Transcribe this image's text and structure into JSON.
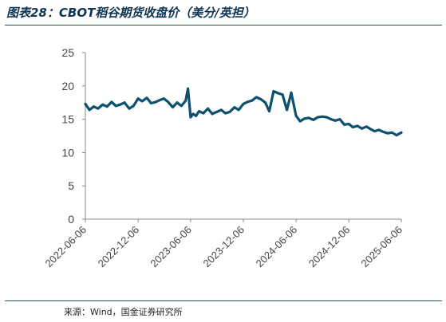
{
  "figure": {
    "title": "图表28：CBOT稻谷期货收盘价（美分/英担）",
    "source": "来源：Wind，国金证券研究所"
  },
  "colors": {
    "series": "#0d5070",
    "axis": "#888888",
    "text": "#444444",
    "rule": "#1f4e79"
  },
  "chart_data": {
    "type": "line",
    "title": "",
    "xlabel": "",
    "ylabel": "",
    "ylim": [
      0,
      25
    ],
    "yticks": [
      "0",
      "5",
      "10",
      "15",
      "20",
      "25"
    ],
    "xticks": [
      "2022-06-06",
      "2022-12-06",
      "2023-06-06",
      "2023-12-06",
      "2024-06-06",
      "2024-12-06",
      "2025-06-06"
    ],
    "grid": false,
    "legend": "none",
    "series": [
      {
        "name": "",
        "x": [
          "2022-06-06",
          "2022-06-20",
          "2022-07-05",
          "2022-07-20",
          "2022-08-05",
          "2022-08-20",
          "2022-09-05",
          "2022-09-20",
          "2022-10-05",
          "2022-10-20",
          "2022-11-05",
          "2022-11-20",
          "2022-12-06",
          "2022-12-20",
          "2023-01-05",
          "2023-01-20",
          "2023-02-05",
          "2023-02-20",
          "2023-03-05",
          "2023-03-20",
          "2023-04-05",
          "2023-04-20",
          "2023-05-05",
          "2023-05-20",
          "2023-05-28",
          "2023-06-06",
          "2023-06-15",
          "2023-06-25",
          "2023-07-05",
          "2023-07-20",
          "2023-08-05",
          "2023-08-20",
          "2023-09-05",
          "2023-09-20",
          "2023-10-05",
          "2023-10-20",
          "2023-11-05",
          "2023-11-20",
          "2023-12-06",
          "2023-12-20",
          "2024-01-05",
          "2024-01-20",
          "2024-02-05",
          "2024-02-20",
          "2024-03-05",
          "2024-03-20",
          "2024-04-05",
          "2024-04-20",
          "2024-05-05",
          "2024-05-20",
          "2024-06-06",
          "2024-06-20",
          "2024-07-05",
          "2024-07-20",
          "2024-08-05",
          "2024-08-20",
          "2024-09-05",
          "2024-09-20",
          "2024-10-05",
          "2024-10-20",
          "2024-11-05",
          "2024-11-20",
          "2024-12-06",
          "2024-12-20",
          "2025-01-05",
          "2025-01-20",
          "2025-02-05",
          "2025-02-20",
          "2025-03-05",
          "2025-03-20",
          "2025-04-05",
          "2025-04-20",
          "2025-05-05",
          "2025-05-20",
          "2025-06-06"
        ],
        "y": [
          17.3,
          16.4,
          16.9,
          16.6,
          17.2,
          16.9,
          17.6,
          17.0,
          17.2,
          17.5,
          16.6,
          17.0,
          18.1,
          17.7,
          18.2,
          17.4,
          17.6,
          17.9,
          18.1,
          17.6,
          16.8,
          17.5,
          17.0,
          17.8,
          19.6,
          15.3,
          15.8,
          15.5,
          16.2,
          15.9,
          16.6,
          15.8,
          16.1,
          16.4,
          15.9,
          16.1,
          16.8,
          16.4,
          17.3,
          17.6,
          17.8,
          18.3,
          18.0,
          17.5,
          16.2,
          19.2,
          18.9,
          18.7,
          16.4,
          19.0,
          15.5,
          14.7,
          15.1,
          15.2,
          14.9,
          15.3,
          15.4,
          15.3,
          15.0,
          14.8,
          15.0,
          14.2,
          14.3,
          13.8,
          14.0,
          13.6,
          13.9,
          13.5,
          13.2,
          13.4,
          13.1,
          12.9,
          13.0,
          12.6,
          13.0
        ]
      }
    ]
  }
}
